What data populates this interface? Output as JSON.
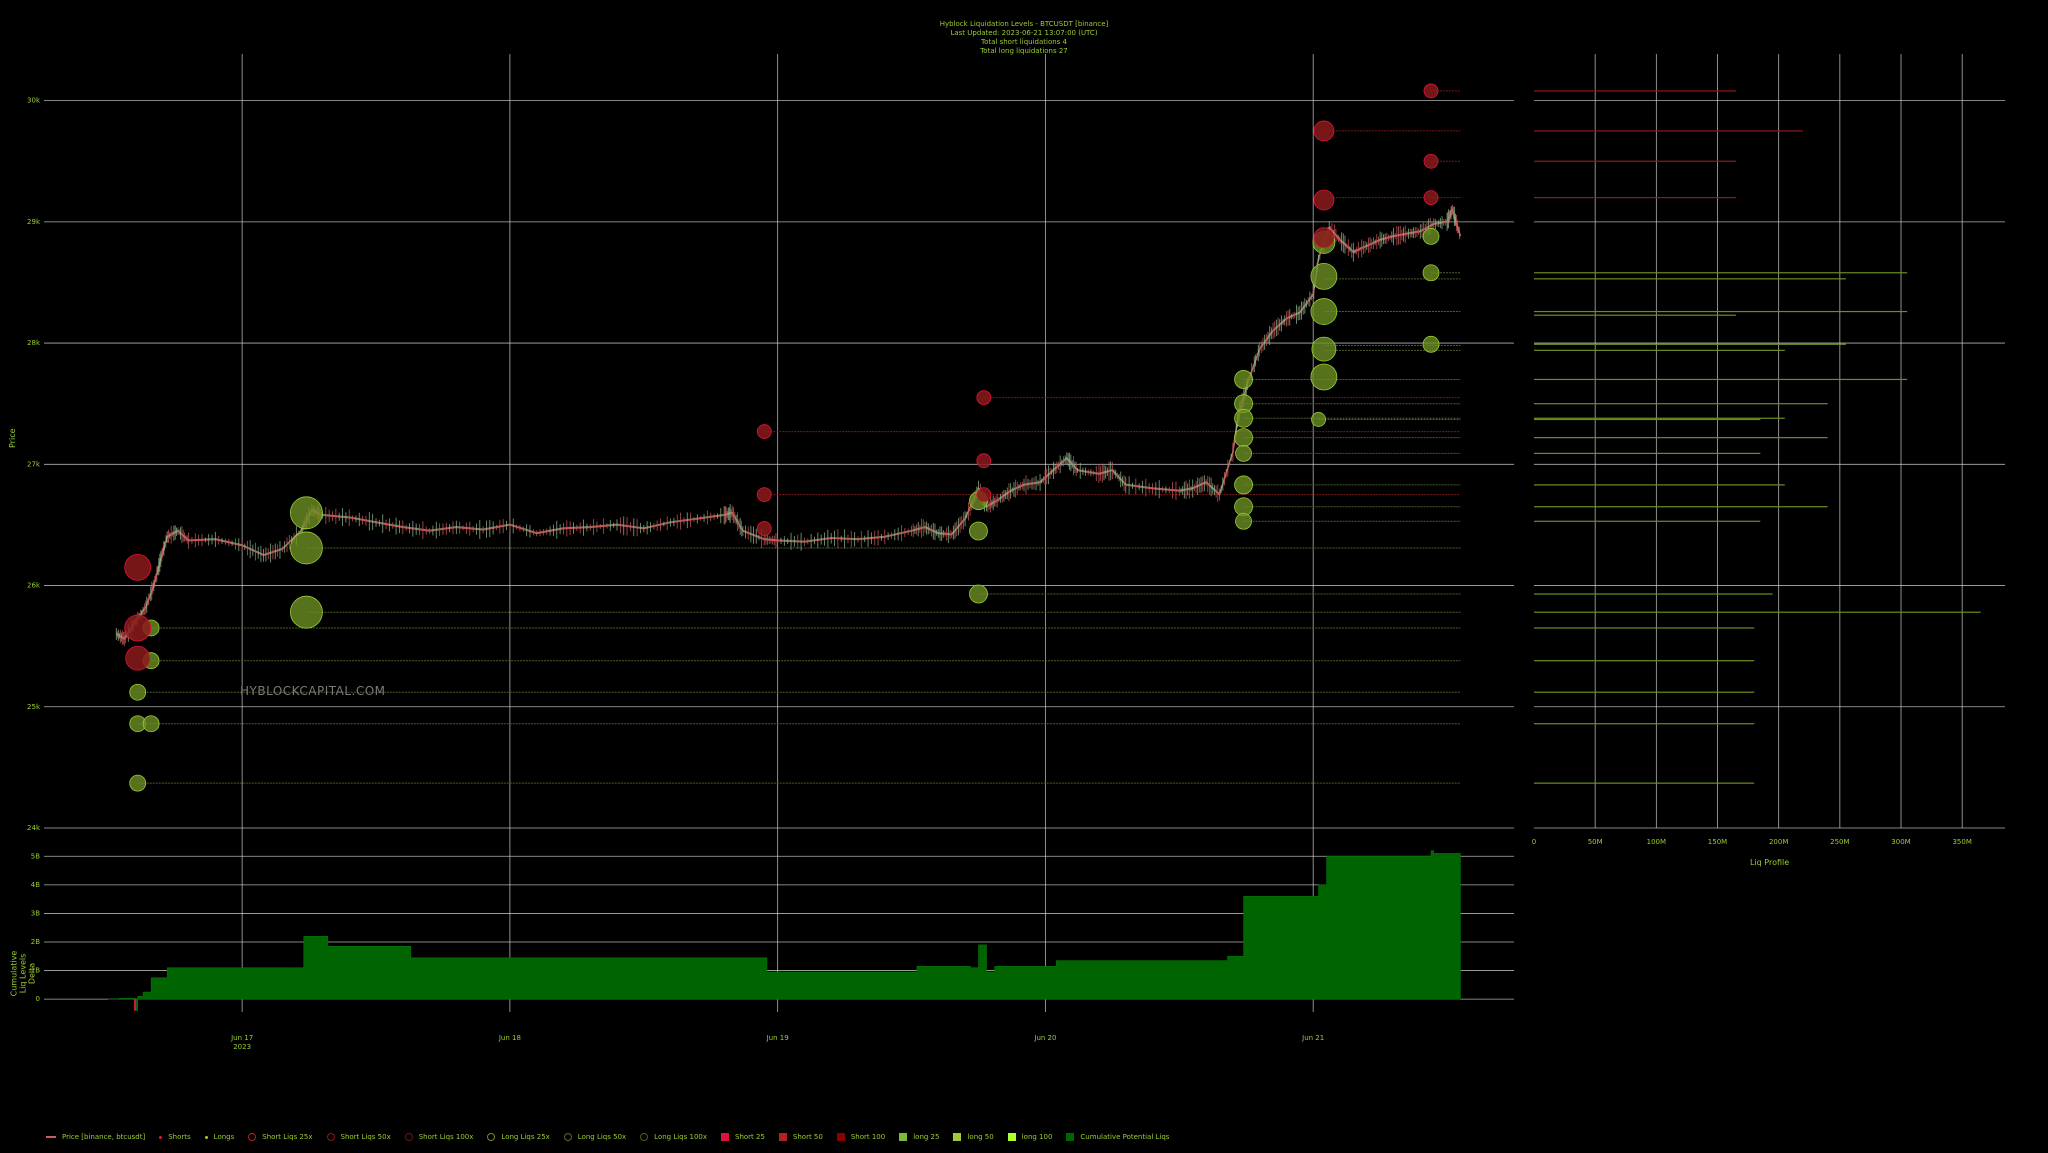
{
  "header": {
    "title": "Hyblock Liquidation Levels - BTCUSDT [binance]",
    "updated": "Last Updated:  2023-06-21 13:07:00 (UTC)",
    "short_total": "Total short liquidations 4",
    "long_total": "Total long liquidations 27"
  },
  "watermark": "HYBLOCKCAPITAL.COM",
  "labels": {
    "price_axis": "Price",
    "cum_axis": "Cumulative Liq Levels Delta",
    "profile_axis": "Liq Profile"
  },
  "colors": {
    "short": "#b22222",
    "long": "#6b8e23",
    "long_light": "#9acd32",
    "cum": "#006400",
    "candle_up": "#8fbc8f",
    "candle_down": "#cd5c5c",
    "grid": "#cfcfcf"
  },
  "legend": [
    {
      "label": "Price [binance, btcusdt]",
      "kind": "candle",
      "color": "#cd5c5c"
    },
    {
      "label": "Shorts",
      "kind": "dot-small",
      "color": "#dc143c"
    },
    {
      "label": "Longs",
      "kind": "dot-small",
      "color": "#9acd32"
    },
    {
      "label": "Short Liqs 25x",
      "kind": "circle",
      "color": "#b22222"
    },
    {
      "label": "Short Liqs 50x",
      "kind": "circle",
      "color": "#8b1a1a"
    },
    {
      "label": "Short Liqs 100x",
      "kind": "circle",
      "color": "#6b1414"
    },
    {
      "label": "Long Liqs 25x",
      "kind": "circle",
      "color": "#6b8e23"
    },
    {
      "label": "Long Liqs 50x",
      "kind": "circle",
      "color": "#556b2f"
    },
    {
      "label": "Long Liqs 100x",
      "kind": "circle",
      "color": "#4a5d23"
    },
    {
      "label": "Short 25",
      "kind": "square",
      "color": "#dc143c"
    },
    {
      "label": "Short 50",
      "kind": "square",
      "color": "#b22222"
    },
    {
      "label": "Short 100",
      "kind": "square",
      "color": "#8b0000"
    },
    {
      "label": "long 25",
      "kind": "square",
      "color": "#7cba3a"
    },
    {
      "label": "long 50",
      "kind": "square",
      "color": "#9acd32"
    },
    {
      "label": "long 100",
      "kind": "square",
      "color": "#adff2f"
    },
    {
      "label": "Cumulative Potential Liqs",
      "kind": "square",
      "color": "#006400"
    }
  ],
  "chart_data": [
    {
      "type": "scatter",
      "name": "price-and-liquidation-levels",
      "ylabel": "Price",
      "ylim": [
        24000,
        30500
      ],
      "y_ticks": [
        "24k",
        "25k",
        "26k",
        "27k",
        "28k",
        "29k",
        "30k"
      ],
      "y_tick_values": [
        24000,
        25000,
        26000,
        27000,
        28000,
        29000,
        30000
      ],
      "x_ticks": [
        "Jun 17\n2023",
        "Jun 18",
        "Jun 19",
        "Jun 20",
        "Jun 21"
      ],
      "x_tick_values": [
        17,
        18,
        19,
        20,
        21
      ],
      "xlim": [
        16.26,
        21.75
      ],
      "grid": true,
      "price_path": [
        [
          16.53,
          25600
        ],
        [
          16.56,
          25560
        ],
        [
          16.6,
          25700
        ],
        [
          16.64,
          25820
        ],
        [
          16.67,
          26000
        ],
        [
          16.7,
          26250
        ],
        [
          16.72,
          26400
        ],
        [
          16.76,
          26450
        ],
        [
          16.8,
          26370
        ],
        [
          16.9,
          26380
        ],
        [
          17.0,
          26330
        ],
        [
          17.08,
          26250
        ],
        [
          17.15,
          26300
        ],
        [
          17.22,
          26450
        ],
        [
          17.26,
          26620
        ],
        [
          17.3,
          26580
        ],
        [
          17.4,
          26560
        ],
        [
          17.5,
          26520
        ],
        [
          17.6,
          26480
        ],
        [
          17.7,
          26450
        ],
        [
          17.8,
          26480
        ],
        [
          17.9,
          26460
        ],
        [
          18.0,
          26500
        ],
        [
          18.1,
          26430
        ],
        [
          18.2,
          26470
        ],
        [
          18.3,
          26480
        ],
        [
          18.4,
          26500
        ],
        [
          18.5,
          26470
        ],
        [
          18.6,
          26520
        ],
        [
          18.7,
          26550
        ],
        [
          18.8,
          26580
        ],
        [
          18.83,
          26600
        ],
        [
          18.87,
          26450
        ],
        [
          18.95,
          26380
        ],
        [
          19.0,
          26370
        ],
        [
          19.1,
          26360
        ],
        [
          19.2,
          26390
        ],
        [
          19.3,
          26380
        ],
        [
          19.4,
          26400
        ],
        [
          19.5,
          26450
        ],
        [
          19.55,
          26480
        ],
        [
          19.6,
          26430
        ],
        [
          19.65,
          26420
        ],
        [
          19.7,
          26550
        ],
        [
          19.75,
          26800
        ],
        [
          19.78,
          26650
        ],
        [
          19.82,
          26700
        ],
        [
          19.87,
          26780
        ],
        [
          19.92,
          26830
        ],
        [
          19.98,
          26850
        ],
        [
          20.03,
          26950
        ],
        [
          20.08,
          27050
        ],
        [
          20.12,
          26950
        ],
        [
          20.2,
          26920
        ],
        [
          20.25,
          26950
        ],
        [
          20.3,
          26830
        ],
        [
          20.4,
          26800
        ],
        [
          20.5,
          26780
        ],
        [
          20.55,
          26800
        ],
        [
          20.6,
          26850
        ],
        [
          20.65,
          26750
        ],
        [
          20.7,
          27100
        ],
        [
          20.72,
          27400
        ],
        [
          20.76,
          27700
        ],
        [
          20.8,
          27950
        ],
        [
          20.85,
          28100
        ],
        [
          20.9,
          28200
        ],
        [
          20.95,
          28250
        ],
        [
          21.0,
          28400
        ],
        [
          21.02,
          28700
        ],
        [
          21.06,
          28950
        ],
        [
          21.1,
          28850
        ],
        [
          21.15,
          28750
        ],
        [
          21.2,
          28800
        ],
        [
          21.25,
          28850
        ],
        [
          21.3,
          28880
        ],
        [
          21.35,
          28900
        ],
        [
          21.4,
          28920
        ],
        [
          21.45,
          28980
        ],
        [
          21.5,
          29000
        ],
        [
          21.52,
          29100
        ],
        [
          21.55,
          28880
        ]
      ],
      "short_liqs": [
        {
          "x": 16.61,
          "y": 26150,
          "r": 13
        },
        {
          "x": 16.61,
          "y": 25650,
          "r": 13
        },
        {
          "x": 16.61,
          "y": 25400,
          "r": 12
        },
        {
          "x": 18.95,
          "y": 27270,
          "r": 7
        },
        {
          "x": 18.95,
          "y": 26750,
          "r": 7
        },
        {
          "x": 18.95,
          "y": 26470,
          "r": 7
        },
        {
          "x": 19.77,
          "y": 27550,
          "r": 7
        },
        {
          "x": 19.77,
          "y": 27030,
          "r": 7
        },
        {
          "x": 19.77,
          "y": 26750,
          "r": 7
        },
        {
          "x": 21.04,
          "y": 29750,
          "r": 10
        },
        {
          "x": 21.04,
          "y": 29180,
          "r": 10
        },
        {
          "x": 21.04,
          "y": 28870,
          "r": 10
        },
        {
          "x": 21.44,
          "y": 30080,
          "r": 7
        },
        {
          "x": 21.44,
          "y": 29500,
          "r": 7
        },
        {
          "x": 21.44,
          "y": 29200,
          "r": 7
        }
      ],
      "long_liqs": [
        {
          "x": 17.24,
          "y": 26600,
          "r": 16
        },
        {
          "x": 17.24,
          "y": 26310,
          "r": 16
        },
        {
          "x": 17.24,
          "y": 25780,
          "r": 16
        },
        {
          "x": 16.66,
          "y": 25650,
          "r": 8
        },
        {
          "x": 16.66,
          "y": 25380,
          "r": 8
        },
        {
          "x": 16.61,
          "y": 25120,
          "r": 8
        },
        {
          "x": 16.61,
          "y": 24860,
          "r": 8
        },
        {
          "x": 16.66,
          "y": 24860,
          "r": 8
        },
        {
          "x": 16.61,
          "y": 24370,
          "r": 8
        },
        {
          "x": 19.75,
          "y": 26700,
          "r": 9
        },
        {
          "x": 19.75,
          "y": 26450,
          "r": 9
        },
        {
          "x": 19.75,
          "y": 25930,
          "r": 9
        },
        {
          "x": 20.74,
          "y": 27700,
          "r": 9
        },
        {
          "x": 20.74,
          "y": 27500,
          "r": 9
        },
        {
          "x": 20.74,
          "y": 27380,
          "r": 9
        },
        {
          "x": 20.74,
          "y": 27220,
          "r": 9
        },
        {
          "x": 20.74,
          "y": 27090,
          "r": 8
        },
        {
          "x": 20.74,
          "y": 26830,
          "r": 9
        },
        {
          "x": 20.74,
          "y": 26650,
          "r": 9
        },
        {
          "x": 20.74,
          "y": 26530,
          "r": 8
        },
        {
          "x": 21.04,
          "y": 28830,
          "r": 11
        },
        {
          "x": 21.04,
          "y": 28550,
          "r": 13
        },
        {
          "x": 21.04,
          "y": 28260,
          "r": 13
        },
        {
          "x": 21.04,
          "y": 27950,
          "r": 12
        },
        {
          "x": 21.04,
          "y": 27720,
          "r": 13
        },
        {
          "x": 21.02,
          "y": 27370,
          "r": 7
        },
        {
          "x": 21.44,
          "y": 28880,
          "r": 8
        },
        {
          "x": 21.44,
          "y": 28580,
          "r": 8
        },
        {
          "x": 21.44,
          "y": 27990,
          "r": 8
        }
      ],
      "level_lines": [
        {
          "y": 30080,
          "x0": 21.44,
          "side": "short"
        },
        {
          "y": 29750,
          "x0": 21.04,
          "side": "short"
        },
        {
          "y": 29500,
          "x0": 21.44,
          "side": "short"
        },
        {
          "y": 29200,
          "x0": 21.04,
          "side": "short"
        },
        {
          "y": 27270,
          "x0": 18.95,
          "side": "short"
        },
        {
          "y": 27550,
          "x0": 19.77,
          "side": "short"
        },
        {
          "y": 26750,
          "x0": 18.95,
          "side": "short"
        },
        {
          "y": 28580,
          "x0": 21.44,
          "side": "long"
        },
        {
          "y": 28530,
          "x0": 21.04,
          "side": "long"
        },
        {
          "y": 28260,
          "x0": 21.04,
          "side": "long"
        },
        {
          "y": 27980,
          "x0": 21.04,
          "side": "long"
        },
        {
          "y": 27940,
          "x0": 21.04,
          "side": "long"
        },
        {
          "y": 27700,
          "x0": 20.74,
          "side": "long"
        },
        {
          "y": 27500,
          "x0": 20.74,
          "side": "long"
        },
        {
          "y": 27380,
          "x0": 20.74,
          "side": "long"
        },
        {
          "y": 27370,
          "x0": 21.02,
          "side": "long"
        },
        {
          "y": 27220,
          "x0": 20.74,
          "side": "long"
        },
        {
          "y": 27090,
          "x0": 20.74,
          "side": "long"
        },
        {
          "y": 26830,
          "x0": 20.74,
          "side": "long"
        },
        {
          "y": 26650,
          "x0": 20.74,
          "side": "long"
        },
        {
          "y": 26530,
          "x0": 20.74,
          "side": "long"
        },
        {
          "y": 26310,
          "x0": 17.24,
          "side": "long"
        },
        {
          "y": 25930,
          "x0": 19.75,
          "side": "long"
        },
        {
          "y": 25780,
          "x0": 17.24,
          "side": "long"
        },
        {
          "y": 25650,
          "x0": 16.66,
          "side": "long"
        },
        {
          "y": 25380,
          "x0": 16.66,
          "side": "long"
        },
        {
          "y": 25120,
          "x0": 16.61,
          "side": "long"
        },
        {
          "y": 24860,
          "x0": 16.61,
          "side": "long"
        },
        {
          "y": 24370,
          "x0": 16.61,
          "side": "long"
        }
      ],
      "line_end_x": 21.55
    },
    {
      "type": "bar",
      "name": "liq-profile",
      "xlabel": "Liq Profile",
      "x_ticks": [
        "0",
        "50M",
        "100M",
        "150M",
        "200M",
        "250M",
        "300M",
        "350M"
      ],
      "x_tick_values": [
        0,
        50,
        100,
        150,
        200,
        250,
        300,
        350
      ],
      "xlim": [
        0,
        385
      ],
      "bars": [
        {
          "y": 30080,
          "v": 165,
          "side": "short"
        },
        {
          "y": 29750,
          "v": 220,
          "side": "short"
        },
        {
          "y": 29500,
          "v": 165,
          "side": "short"
        },
        {
          "y": 29200,
          "v": 165,
          "side": "short"
        },
        {
          "y": 28580,
          "v": 305,
          "side": "long"
        },
        {
          "y": 28530,
          "v": 255,
          "side": "long"
        },
        {
          "y": 28260,
          "v": 305,
          "side": "long"
        },
        {
          "y": 28230,
          "v": 165,
          "side": "long"
        },
        {
          "y": 27990,
          "v": 255,
          "side": "long"
        },
        {
          "y": 27940,
          "v": 205,
          "side": "long"
        },
        {
          "y": 27700,
          "v": 305,
          "side": "long"
        },
        {
          "y": 27500,
          "v": 240,
          "side": "long"
        },
        {
          "y": 27380,
          "v": 205,
          "side": "long"
        },
        {
          "y": 27370,
          "v": 185,
          "side": "long"
        },
        {
          "y": 27220,
          "v": 240,
          "side": "long"
        },
        {
          "y": 27090,
          "v": 185,
          "side": "long"
        },
        {
          "y": 26830,
          "v": 205,
          "side": "long"
        },
        {
          "y": 26650,
          "v": 240,
          "side": "long"
        },
        {
          "y": 26530,
          "v": 185,
          "side": "long"
        },
        {
          "y": 25930,
          "v": 195,
          "side": "long"
        },
        {
          "y": 25780,
          "v": 365,
          "side": "long"
        },
        {
          "y": 25650,
          "v": 180,
          "side": "long"
        },
        {
          "y": 25380,
          "v": 180,
          "side": "long"
        },
        {
          "y": 25120,
          "v": 180,
          "side": "long"
        },
        {
          "y": 24860,
          "v": 180,
          "side": "long"
        },
        {
          "y": 24370,
          "v": 180,
          "side": "long"
        }
      ]
    },
    {
      "type": "area",
      "name": "cumulative-liq-levels-delta",
      "ylabel": "Cumulative Liq Levels Delta",
      "y_ticks": [
        "0",
        "1B",
        "2B",
        "3B",
        "4B",
        "5B"
      ],
      "y_tick_values": [
        0,
        1,
        2,
        3,
        4,
        5
      ],
      "ylim": [
        -0.45,
        5.15
      ],
      "steps": [
        [
          16.5,
          0
        ],
        [
          16.54,
          0.03
        ],
        [
          16.6,
          -0.4
        ],
        [
          16.61,
          0.1
        ],
        [
          16.63,
          0.25
        ],
        [
          16.66,
          0.75
        ],
        [
          16.72,
          1.1
        ],
        [
          17.18,
          1.1
        ],
        [
          17.23,
          2.2
        ],
        [
          17.32,
          1.85
        ],
        [
          17.63,
          1.45
        ],
        [
          18.93,
          1.45
        ],
        [
          18.96,
          0.95
        ],
        [
          19.52,
          1.15
        ],
        [
          19.72,
          1.1
        ],
        [
          19.75,
          1.9
        ],
        [
          19.78,
          0.95
        ],
        [
          19.81,
          1.15
        ],
        [
          20.04,
          1.35
        ],
        [
          20.68,
          1.5
        ],
        [
          20.74,
          3.6
        ],
        [
          21.02,
          4.0
        ],
        [
          21.05,
          5.0
        ],
        [
          21.44,
          5.2
        ],
        [
          21.45,
          5.1
        ],
        [
          21.55,
          5.1
        ]
      ]
    }
  ]
}
